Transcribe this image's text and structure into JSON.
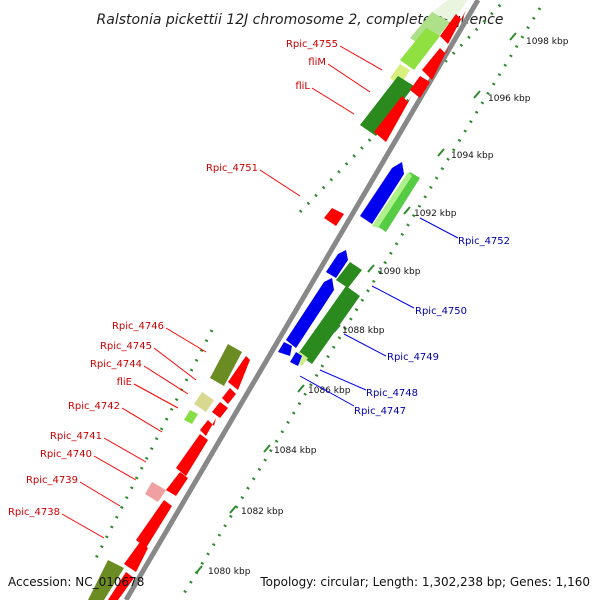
{
  "title": "Ralstonia pickettii 12J chromosome 2, complete sequence",
  "footer": {
    "accession": "Accession: NC_010678",
    "summary": "Topology: circular; Length: 1,302,238 bp; Genes: 1,160"
  },
  "colors": {
    "backbone": "#888888",
    "forward_cds": "#ff0000",
    "reverse_cds": "#0000ee",
    "forward_label": "#cc0000",
    "reverse_label": "#0000aa",
    "tick": "#2e8b2e",
    "gc_dark": "#2a8a1e",
    "gc_light": "#9ae66a",
    "olive": "#6b8c22"
  },
  "scale_ticks": [
    {
      "label": "1080 kbp"
    },
    {
      "label": "1082 kbp"
    },
    {
      "label": "1084 kbp"
    },
    {
      "label": "1086 kbp"
    },
    {
      "label": "1088 kbp"
    },
    {
      "label": "1090 kbp"
    },
    {
      "label": "1092 kbp"
    },
    {
      "label": "1094 kbp"
    },
    {
      "label": "1096 kbp"
    },
    {
      "label": "1098 kbp"
    }
  ],
  "forward_labels": [
    {
      "name": "Rpic_4755"
    },
    {
      "name": "fliM"
    },
    {
      "name": "fliL"
    },
    {
      "name": "Rpic_4751"
    },
    {
      "name": "Rpic_4746"
    },
    {
      "name": "Rpic_4745"
    },
    {
      "name": "Rpic_4744"
    },
    {
      "name": "fliE"
    },
    {
      "name": "Rpic_4742"
    },
    {
      "name": "Rpic_4741"
    },
    {
      "name": "Rpic_4740"
    },
    {
      "name": "Rpic_4739"
    },
    {
      "name": "Rpic_4738"
    }
  ],
  "reverse_labels": [
    {
      "name": "Rpic_4752"
    },
    {
      "name": "Rpic_4750"
    },
    {
      "name": "Rpic_4749"
    },
    {
      "name": "Rpic_4748"
    },
    {
      "name": "Rpic_4747"
    }
  ]
}
